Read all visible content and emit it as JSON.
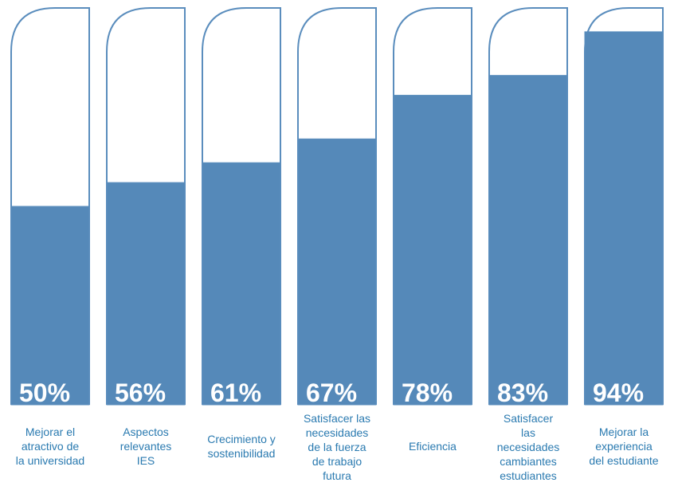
{
  "chart_data": {
    "type": "bar",
    "categories": [
      "Mejorar el\natractivo de\nla universidad",
      "Aspectos\nrelevantes\nIES",
      "Crecimiento y\nsostenibilidad",
      "Satisfacer las\nnecesidades\nde la fuerza\nde trabajo\nfutura",
      "Eficiencia",
      "Satisfacer\nlas\nnecesidades\ncambiantes\nestudiantes",
      "Mejorar la\nexperiencia\ndel estudiante"
    ],
    "values": [
      50,
      56,
      61,
      67,
      78,
      83,
      94
    ],
    "value_labels": [
      "50%",
      "56%",
      "61%",
      "67%",
      "78%",
      "83%",
      "94%"
    ],
    "ylim": [
      0,
      100
    ],
    "colors": {
      "fill": "#5589b9",
      "outline": "#5a8dbd",
      "label": "#2a7ab0"
    }
  }
}
